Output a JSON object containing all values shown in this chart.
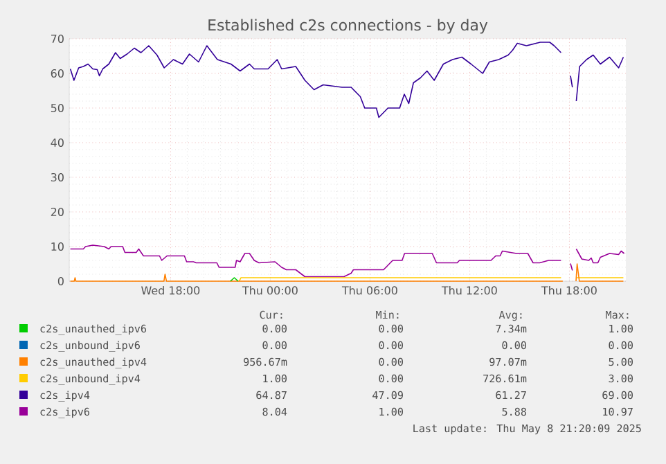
{
  "chart_data": {
    "type": "line",
    "title": "Established c2s connections - by day",
    "xlim": [
      "2025-05-07T11:54",
      "2025-05-08T21:24"
    ],
    "ylim": [
      0,
      70
    ],
    "xticks": [
      {
        "value": "2025-05-07T18:00",
        "label": "Wed 18:00"
      },
      {
        "value": "2025-05-08T00:00",
        "label": "Thu 00:00"
      },
      {
        "value": "2025-05-08T06:00",
        "label": "Thu 06:00"
      },
      {
        "value": "2025-05-08T12:00",
        "label": "Thu 12:00"
      },
      {
        "value": "2025-05-08T18:00",
        "label": "Thu 18:00"
      }
    ],
    "yticks": [
      0,
      10,
      20,
      30,
      40,
      50,
      60,
      70
    ],
    "grid": true,
    "legend": "bottom",
    "series": [
      {
        "name": "c2s_unauthed_ipv6",
        "color": "#00cc00",
        "x": [
          "2025-05-07T21:36",
          "2025-05-07T21:50",
          "2025-05-07T22:04"
        ],
        "values": [
          0,
          1,
          0
        ]
      },
      {
        "name": "c2s_unbound_ipv6",
        "color": "#0066b3"
      },
      {
        "name": "c2s_unauthed_ipv4",
        "color": "#ff8000",
        "x": [
          "2025-05-07T11:58",
          "2025-05-07T12:12",
          "2025-05-07T12:15",
          "2025-05-07T12:18",
          "2025-05-07T17:36",
          "2025-05-07T17:40",
          "2025-05-07T17:45",
          "2025-05-08T17:36",
          "2025-05-08T17:48",
          "2025-05-08T18:24",
          "2025-05-08T18:28",
          "2025-05-08T18:36",
          "2025-05-08T21:15"
        ],
        "values": [
          0,
          0,
          1,
          0,
          0,
          2,
          0,
          0,
          null,
          0,
          5,
          0,
          0
        ]
      },
      {
        "name": "c2s_unbound_ipv4",
        "color": "#ffcc00",
        "x": [
          "2025-05-07T22:08",
          "2025-05-07T22:14",
          "2025-05-08T17:30",
          "2025-05-08T17:48",
          "2025-05-08T18:27",
          "2025-05-08T21:15"
        ],
        "values": [
          0,
          1,
          1,
          null,
          1,
          1
        ]
      },
      {
        "name": "c2s_ipv4",
        "color": "#330099",
        "x": [
          "2025-05-07T11:58",
          "2025-05-07T12:11",
          "2025-05-07T12:28",
          "2025-05-07T12:45",
          "2025-05-07T13:02",
          "2025-05-07T13:19",
          "2025-05-07T13:35",
          "2025-05-07T13:43",
          "2025-05-07T13:55",
          "2025-05-07T14:17",
          "2025-05-07T14:41",
          "2025-05-07T14:58",
          "2025-05-07T15:23",
          "2025-05-07T15:49",
          "2025-05-07T16:13",
          "2025-05-07T16:41",
          "2025-05-07T17:11",
          "2025-05-07T17:37",
          "2025-05-07T18:10",
          "2025-05-07T18:43",
          "2025-05-07T19:08",
          "2025-05-07T19:41",
          "2025-05-07T20:11",
          "2025-05-07T20:49",
          "2025-05-07T21:38",
          "2025-05-07T22:11",
          "2025-05-07T22:45",
          "2025-05-07T23:02",
          "2025-05-07T23:52",
          "2025-05-08T00:25",
          "2025-05-08T00:41",
          "2025-05-08T01:32",
          "2025-05-08T02:05",
          "2025-05-08T02:38",
          "2025-05-08T03:11",
          "2025-05-08T04:19",
          "2025-05-08T04:52",
          "2025-05-08T05:25",
          "2025-05-08T05:41",
          "2025-05-08T06:23",
          "2025-05-08T06:32",
          "2025-05-08T07:05",
          "2025-05-08T07:47",
          "2025-05-08T08:04",
          "2025-05-08T08:20",
          "2025-05-08T08:37",
          "2025-05-08T09:02",
          "2025-05-08T09:26",
          "2025-05-08T09:52",
          "2025-05-08T10:25",
          "2025-05-08T10:58",
          "2025-05-08T11:32",
          "2025-05-08T12:05",
          "2025-05-08T12:47",
          "2025-05-08T13:11",
          "2025-05-08T13:45",
          "2025-05-08T14:19",
          "2025-05-08T14:35",
          "2025-05-08T14:52",
          "2025-05-08T15:25",
          "2025-05-08T16:15",
          "2025-05-08T16:49",
          "2025-05-08T17:05",
          "2025-05-08T17:30",
          "2025-05-08T17:48",
          "2025-05-08T18:04",
          "2025-05-08T18:11",
          "2025-05-08T18:18",
          "2025-05-08T18:25",
          "2025-05-08T18:37",
          "2025-05-08T19:02",
          "2025-05-08T19:26",
          "2025-05-08T19:52",
          "2025-05-08T20:25",
          "2025-05-08T20:58",
          "2025-05-08T21:15"
        ],
        "values": [
          61.3,
          58,
          61.6,
          62,
          62.7,
          61.3,
          61.1,
          59.3,
          61.3,
          62.7,
          66,
          64.3,
          65.6,
          67.3,
          66,
          68,
          65.3,
          61.6,
          64,
          62.7,
          65.6,
          63.3,
          68,
          64,
          62.7,
          60.7,
          62.7,
          61.3,
          61.3,
          64,
          61.3,
          62,
          58,
          55.3,
          56.7,
          56,
          56,
          53.3,
          50,
          50,
          47.3,
          50,
          50,
          54,
          51.3,
          57.3,
          58.7,
          60.7,
          58,
          62.7,
          64,
          64.7,
          62.7,
          60,
          63.3,
          64,
          65.3,
          66.7,
          68.7,
          68,
          69,
          69,
          68,
          66,
          null,
          59.3,
          56,
          null,
          52,
          62,
          64,
          65.3,
          62.7,
          64.7,
          61.6,
          64.7
        ]
      },
      {
        "name": "c2s_ipv6",
        "color": "#990099",
        "x": [
          "2025-05-07T11:58",
          "2025-05-07T12:45",
          "2025-05-07T12:53",
          "2025-05-07T13:19",
          "2025-05-07T14:00",
          "2025-05-07T14:17",
          "2025-05-07T14:25",
          "2025-05-07T15:07",
          "2025-05-07T15:15",
          "2025-05-07T15:56",
          "2025-05-07T16:05",
          "2025-05-07T16:22",
          "2025-05-07T17:20",
          "2025-05-07T17:28",
          "2025-05-07T17:47",
          "2025-05-07T18:50",
          "2025-05-07T18:58",
          "2025-05-07T19:23",
          "2025-05-07T19:32",
          "2025-05-07T20:47",
          "2025-05-07T20:55",
          "2025-05-07T21:53",
          "2025-05-07T21:58",
          "2025-05-07T22:11",
          "2025-05-07T22:28",
          "2025-05-07T22:45",
          "2025-05-07T23:02",
          "2025-05-07T23:19",
          "2025-05-08T00:17",
          "2025-05-08T00:41",
          "2025-05-08T00:58",
          "2025-05-08T01:32",
          "2025-05-08T02:05",
          "2025-05-08T04:26",
          "2025-05-08T04:52",
          "2025-05-08T05:00",
          "2025-05-08T06:49",
          "2025-05-08T07:22",
          "2025-05-08T07:56",
          "2025-05-08T08:05",
          "2025-05-08T09:45",
          "2025-05-08T10:00",
          "2025-05-08T11:15",
          "2025-05-08T11:23",
          "2025-05-08T13:17",
          "2025-05-08T13:34",
          "2025-05-08T13:50",
          "2025-05-08T13:58",
          "2025-05-08T14:49",
          "2025-05-08T15:30",
          "2025-05-08T15:49",
          "2025-05-08T16:13",
          "2025-05-08T16:45",
          "2025-05-08T17:30",
          "2025-05-08T17:48",
          "2025-05-08T18:04",
          "2025-05-08T18:11",
          "2025-05-08T18:18",
          "2025-05-08T18:25",
          "2025-05-08T18:45",
          "2025-05-08T19:10",
          "2025-05-08T19:19",
          "2025-05-08T19:26",
          "2025-05-08T19:43",
          "2025-05-08T19:52",
          "2025-05-08T20:25",
          "2025-05-08T20:58",
          "2025-05-08T21:07",
          "2025-05-08T21:18"
        ],
        "values": [
          9.3,
          9.3,
          10,
          10.4,
          10,
          9.3,
          10,
          10,
          8.3,
          8.3,
          9.3,
          7.3,
          7.3,
          6,
          7.3,
          7.3,
          5.6,
          5.6,
          5.3,
          5.3,
          4,
          4,
          6,
          5.6,
          8,
          8,
          6,
          5.3,
          5.6,
          4,
          3.3,
          3.3,
          1.3,
          1.3,
          2.3,
          3.3,
          3.3,
          6,
          6,
          8,
          8,
          5.3,
          5.3,
          6,
          6,
          7.3,
          7.3,
          8.7,
          8,
          8,
          5.3,
          5.3,
          6,
          6,
          null,
          5.1,
          3.1,
          null,
          9.3,
          6.4,
          6,
          6.7,
          5.3,
          5.3,
          6.9,
          8,
          7.7,
          8.7,
          8
        ]
      }
    ],
    "annotations": [
      "Cur:",
      "Min:",
      "Avg:",
      "Max:",
      "0.00",
      "0.00",
      "7.34m",
      "1.00",
      "0.00",
      "0.00",
      "0.00",
      "0.00",
      "956.67m",
      "0.00",
      "97.07m",
      "5.00",
      "1.00",
      "0.00",
      "726.61m",
      "3.00",
      "64.87",
      "47.09",
      "61.27",
      "69.00",
      "8.04",
      "1.00",
      "5.88",
      "10.97",
      "Last update: Thu May  8 21:20:09 2025"
    ]
  }
}
